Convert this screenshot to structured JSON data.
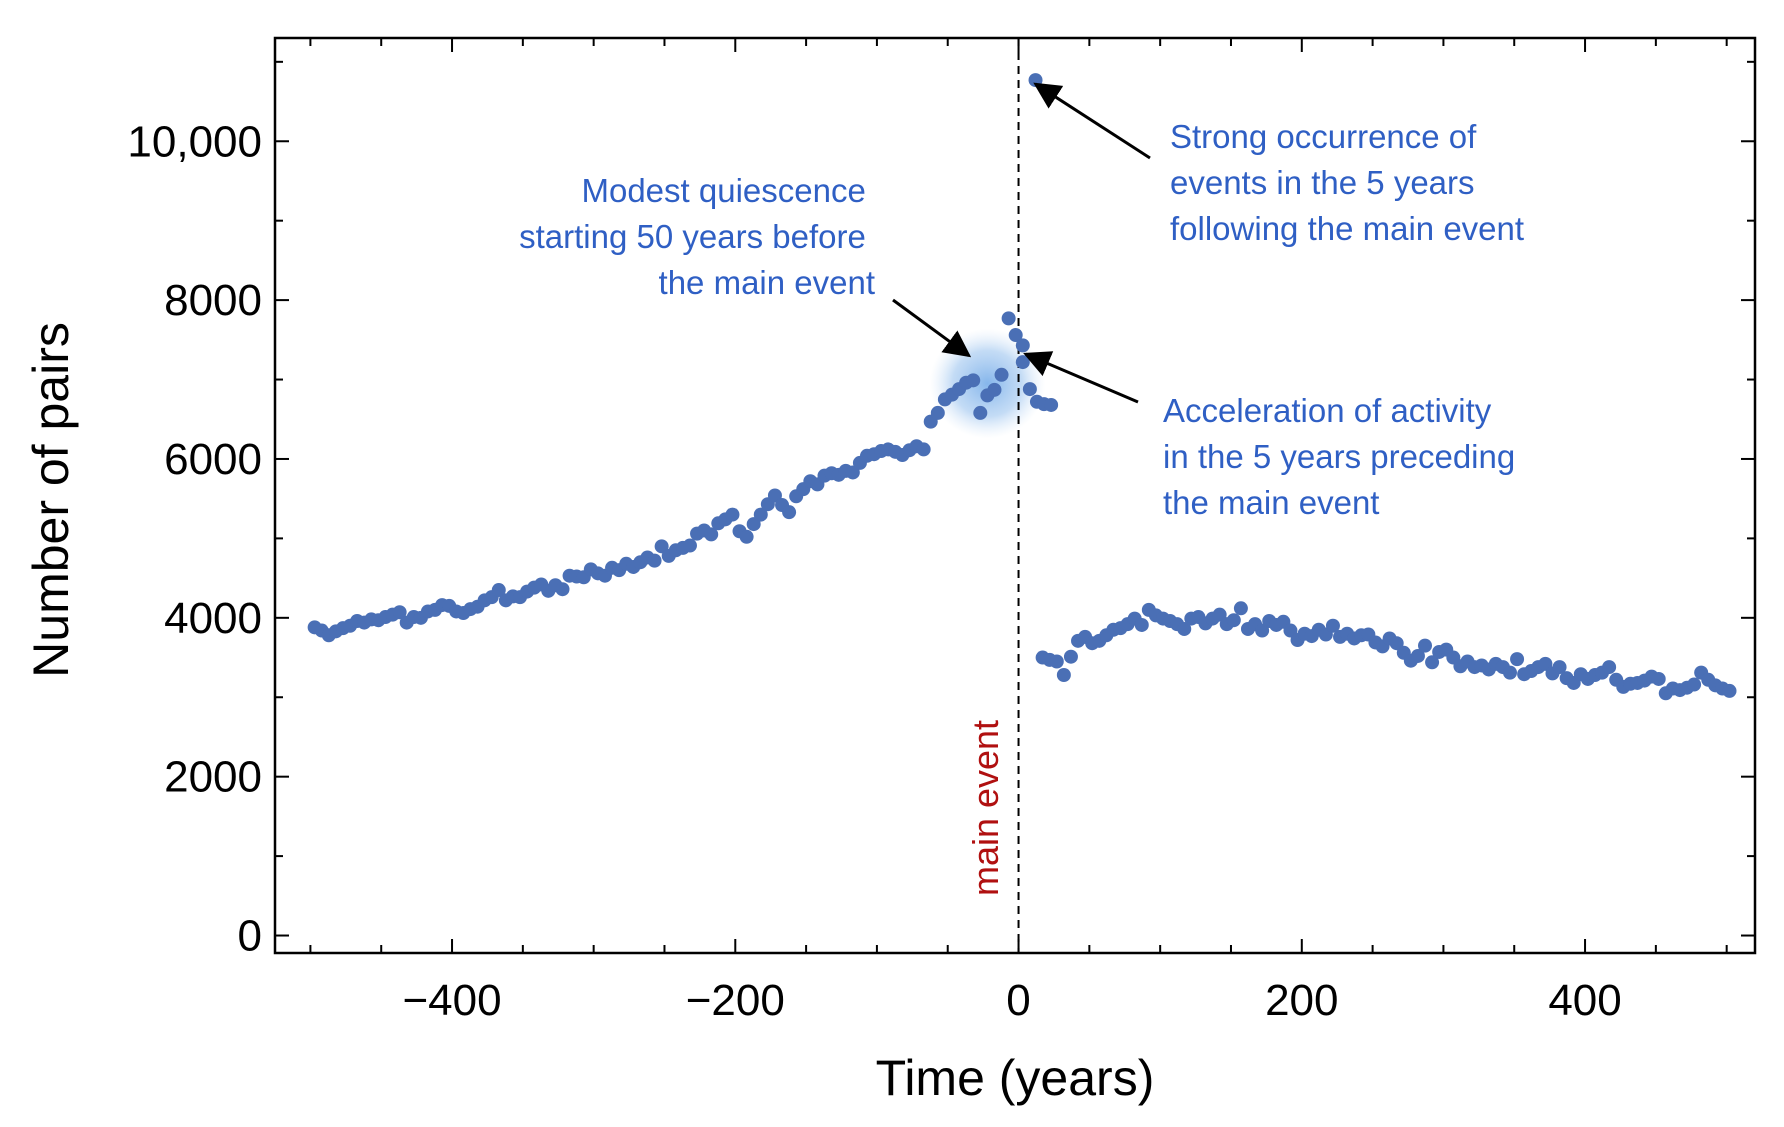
{
  "chart_data": {
    "type": "scatter",
    "title": "",
    "xlabel": "Time (years)",
    "ylabel": "Number of pairs",
    "xlim": [
      -525,
      520
    ],
    "ylim": [
      -220,
      11300
    ],
    "x_ticks": [
      -400,
      -200,
      0,
      200,
      400
    ],
    "x_tick_labels": [
      "−400",
      "−200",
      "0",
      "200",
      "400"
    ],
    "y_ticks": [
      0,
      2000,
      4000,
      6000,
      8000,
      10000
    ],
    "y_tick_labels": [
      "0",
      "2000",
      "4000",
      "6000",
      "8000",
      "10,000"
    ],
    "x_minor_step": 50,
    "y_minor_step": 1000,
    "grid": false,
    "colors": {
      "points": "#4a6fb5",
      "annotation_text": "#2f5fc4",
      "main_event_text": "#b01010",
      "highlight": "#7fb2ea",
      "axis": "#000000"
    },
    "main_event": {
      "x": 0,
      "label": "main event"
    },
    "highlight_region": {
      "x": -22,
      "y": 6950
    },
    "annotations": [
      {
        "name": "quiescence",
        "lines": [
          "Modest quiescence",
          "starting 50 years before",
          "the main event"
        ],
        "target": [
          -35,
          7300
        ]
      },
      {
        "name": "strong-occurrence",
        "lines": [
          "Strong occurrence of",
          "events in the 5 years",
          "following the main event"
        ],
        "target": [
          12,
          10720
        ]
      },
      {
        "name": "acceleration",
        "lines": [
          "Acceleration of activity",
          "in the 5 years preceding",
          "the main event"
        ],
        "target": [
          5,
          7320
        ]
      }
    ],
    "series": [
      {
        "name": "pairs",
        "points": [
          [
            -497,
            3880
          ],
          [
            -492,
            3840
          ],
          [
            -487,
            3780
          ],
          [
            -482,
            3830
          ],
          [
            -477,
            3870
          ],
          [
            -472,
            3900
          ],
          [
            -467,
            3960
          ],
          [
            -462,
            3940
          ],
          [
            -457,
            3980
          ],
          [
            -452,
            3970
          ],
          [
            -447,
            4010
          ],
          [
            -442,
            4040
          ],
          [
            -437,
            4070
          ],
          [
            -432,
            3940
          ],
          [
            -427,
            4010
          ],
          [
            -422,
            4000
          ],
          [
            -417,
            4080
          ],
          [
            -412,
            4100
          ],
          [
            -407,
            4160
          ],
          [
            -402,
            4150
          ],
          [
            -397,
            4080
          ],
          [
            -392,
            4060
          ],
          [
            -387,
            4110
          ],
          [
            -382,
            4140
          ],
          [
            -377,
            4220
          ],
          [
            -372,
            4260
          ],
          [
            -367,
            4350
          ],
          [
            -362,
            4220
          ],
          [
            -357,
            4270
          ],
          [
            -352,
            4260
          ],
          [
            -347,
            4330
          ],
          [
            -342,
            4380
          ],
          [
            -337,
            4420
          ],
          [
            -332,
            4340
          ],
          [
            -327,
            4410
          ],
          [
            -322,
            4360
          ],
          [
            -317,
            4530
          ],
          [
            -312,
            4520
          ],
          [
            -307,
            4510
          ],
          [
            -302,
            4610
          ],
          [
            -297,
            4560
          ],
          [
            -292,
            4530
          ],
          [
            -287,
            4630
          ],
          [
            -282,
            4600
          ],
          [
            -277,
            4680
          ],
          [
            -272,
            4640
          ],
          [
            -267,
            4700
          ],
          [
            -262,
            4760
          ],
          [
            -257,
            4720
          ],
          [
            -252,
            4900
          ],
          [
            -247,
            4780
          ],
          [
            -242,
            4850
          ],
          [
            -237,
            4880
          ],
          [
            -232,
            4910
          ],
          [
            -227,
            5060
          ],
          [
            -222,
            5100
          ],
          [
            -217,
            5050
          ],
          [
            -212,
            5190
          ],
          [
            -207,
            5240
          ],
          [
            -202,
            5300
          ],
          [
            -197,
            5090
          ],
          [
            -192,
            5020
          ],
          [
            -187,
            5180
          ],
          [
            -182,
            5300
          ],
          [
            -177,
            5430
          ],
          [
            -172,
            5540
          ],
          [
            -167,
            5420
          ],
          [
            -162,
            5330
          ],
          [
            -157,
            5530
          ],
          [
            -152,
            5620
          ],
          [
            -147,
            5720
          ],
          [
            -142,
            5680
          ],
          [
            -137,
            5790
          ],
          [
            -132,
            5820
          ],
          [
            -127,
            5800
          ],
          [
            -122,
            5850
          ],
          [
            -117,
            5830
          ],
          [
            -112,
            5950
          ],
          [
            -107,
            6040
          ],
          [
            -102,
            6060
          ],
          [
            -97,
            6100
          ],
          [
            -92,
            6120
          ],
          [
            -87,
            6090
          ],
          [
            -82,
            6050
          ],
          [
            -77,
            6110
          ],
          [
            -72,
            6160
          ],
          [
            -67,
            6120
          ],
          [
            -62,
            6470
          ],
          [
            -57,
            6580
          ],
          [
            -52,
            6750
          ],
          [
            -47,
            6810
          ],
          [
            -42,
            6880
          ],
          [
            -37,
            6960
          ],
          [
            -32,
            6990
          ],
          [
            -27,
            6580
          ],
          [
            -22,
            6800
          ],
          [
            -17,
            6870
          ],
          [
            -12,
            7060
          ],
          [
            -7,
            7770
          ],
          [
            -2,
            7560
          ],
          [
            3,
            7220
          ],
          [
            8,
            6880
          ],
          [
            13,
            6720
          ],
          [
            18,
            6690
          ],
          [
            23,
            6680
          ],
          [
            3,
            7430
          ],
          [
            12,
            10770
          ],
          [
            17,
            3500
          ],
          [
            22,
            3470
          ],
          [
            27,
            3450
          ],
          [
            32,
            3280
          ],
          [
            37,
            3510
          ],
          [
            42,
            3710
          ],
          [
            47,
            3760
          ],
          [
            52,
            3680
          ],
          [
            57,
            3710
          ],
          [
            62,
            3780
          ],
          [
            67,
            3850
          ],
          [
            72,
            3870
          ],
          [
            77,
            3920
          ],
          [
            82,
            3990
          ],
          [
            87,
            3910
          ],
          [
            92,
            4100
          ],
          [
            97,
            4030
          ],
          [
            102,
            3990
          ],
          [
            107,
            3960
          ],
          [
            112,
            3920
          ],
          [
            117,
            3860
          ],
          [
            122,
            3990
          ],
          [
            127,
            4010
          ],
          [
            132,
            3930
          ],
          [
            137,
            3990
          ],
          [
            142,
            4040
          ],
          [
            147,
            3920
          ],
          [
            152,
            3970
          ],
          [
            157,
            4120
          ],
          [
            162,
            3860
          ],
          [
            167,
            3920
          ],
          [
            172,
            3840
          ],
          [
            177,
            3960
          ],
          [
            182,
            3910
          ],
          [
            187,
            3950
          ],
          [
            192,
            3840
          ],
          [
            197,
            3720
          ],
          [
            202,
            3800
          ],
          [
            207,
            3770
          ],
          [
            212,
            3850
          ],
          [
            217,
            3790
          ],
          [
            222,
            3900
          ],
          [
            227,
            3760
          ],
          [
            232,
            3800
          ],
          [
            237,
            3740
          ],
          [
            242,
            3780
          ],
          [
            247,
            3790
          ],
          [
            252,
            3690
          ],
          [
            257,
            3640
          ],
          [
            262,
            3740
          ],
          [
            267,
            3680
          ],
          [
            272,
            3560
          ],
          [
            277,
            3460
          ],
          [
            282,
            3520
          ],
          [
            287,
            3650
          ],
          [
            292,
            3440
          ],
          [
            297,
            3570
          ],
          [
            302,
            3600
          ],
          [
            307,
            3500
          ],
          [
            312,
            3390
          ],
          [
            317,
            3450
          ],
          [
            322,
            3380
          ],
          [
            327,
            3400
          ],
          [
            332,
            3350
          ],
          [
            337,
            3420
          ],
          [
            342,
            3380
          ],
          [
            347,
            3310
          ],
          [
            352,
            3480
          ],
          [
            357,
            3290
          ],
          [
            362,
            3330
          ],
          [
            367,
            3380
          ],
          [
            372,
            3420
          ],
          [
            377,
            3300
          ],
          [
            382,
            3380
          ],
          [
            387,
            3240
          ],
          [
            392,
            3180
          ],
          [
            397,
            3290
          ],
          [
            402,
            3230
          ],
          [
            407,
            3280
          ],
          [
            412,
            3310
          ],
          [
            417,
            3380
          ],
          [
            422,
            3220
          ],
          [
            427,
            3130
          ],
          [
            432,
            3170
          ],
          [
            437,
            3180
          ],
          [
            442,
            3210
          ],
          [
            447,
            3260
          ],
          [
            452,
            3230
          ],
          [
            457,
            3050
          ],
          [
            462,
            3110
          ],
          [
            467,
            3090
          ],
          [
            472,
            3120
          ],
          [
            477,
            3160
          ],
          [
            482,
            3310
          ],
          [
            487,
            3220
          ],
          [
            492,
            3150
          ],
          [
            497,
            3110
          ],
          [
            502,
            3080
          ]
        ]
      }
    ]
  }
}
